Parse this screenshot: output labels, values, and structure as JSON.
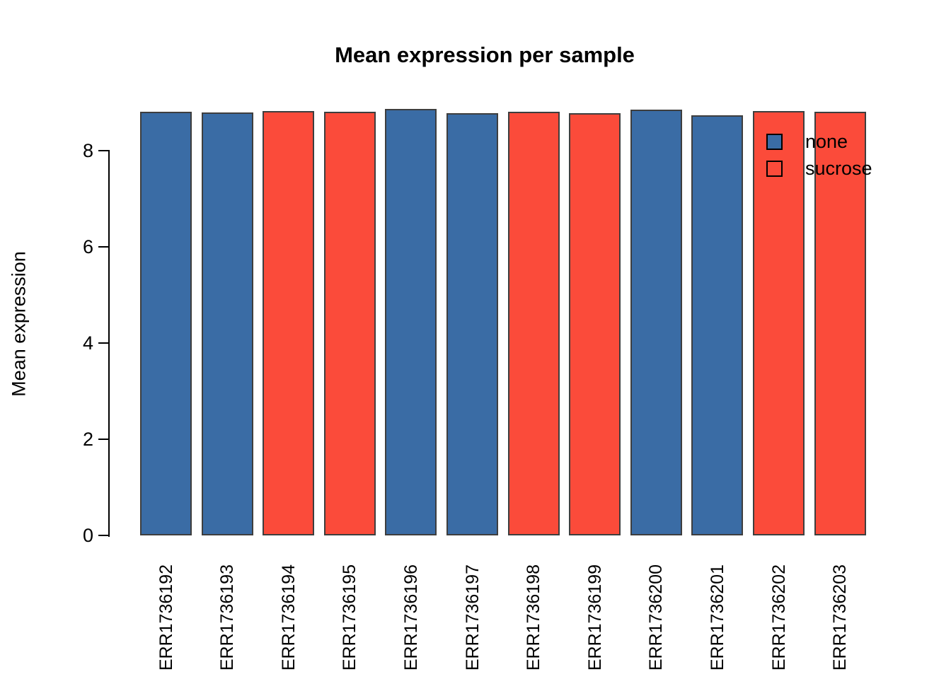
{
  "chart_data": {
    "type": "bar",
    "title": "Mean expression per sample",
    "xlabel": "",
    "ylabel": "Mean expression",
    "categories": [
      "ERR1736192",
      "ERR1736193",
      "ERR1736194",
      "ERR1736195",
      "ERR1736196",
      "ERR1736197",
      "ERR1736198",
      "ERR1736199",
      "ERR1736200",
      "ERR1736201",
      "ERR1736202",
      "ERR1736203"
    ],
    "values": [
      8.81,
      8.79,
      8.83,
      8.81,
      8.87,
      8.78,
      8.81,
      8.78,
      8.86,
      8.74,
      8.83,
      8.81
    ],
    "groups": [
      "none",
      "none",
      "sucrose",
      "sucrose",
      "none",
      "none",
      "sucrose",
      "sucrose",
      "none",
      "none",
      "sucrose",
      "sucrose"
    ],
    "yticks": [
      0,
      2,
      4,
      6,
      8
    ],
    "ylim": [
      0,
      9.1
    ],
    "grid": false,
    "legend_position": "top-right",
    "legend": [
      {
        "label": "none",
        "color": "#3A6CA5"
      },
      {
        "label": "sucrose",
        "color": "#FB4B3A"
      }
    ],
    "colors": {
      "none": "#3A6CA5",
      "sucrose": "#FB4B3A",
      "bar_border": "#3E3E3E",
      "axis": "#000000",
      "text": "#000000"
    }
  }
}
